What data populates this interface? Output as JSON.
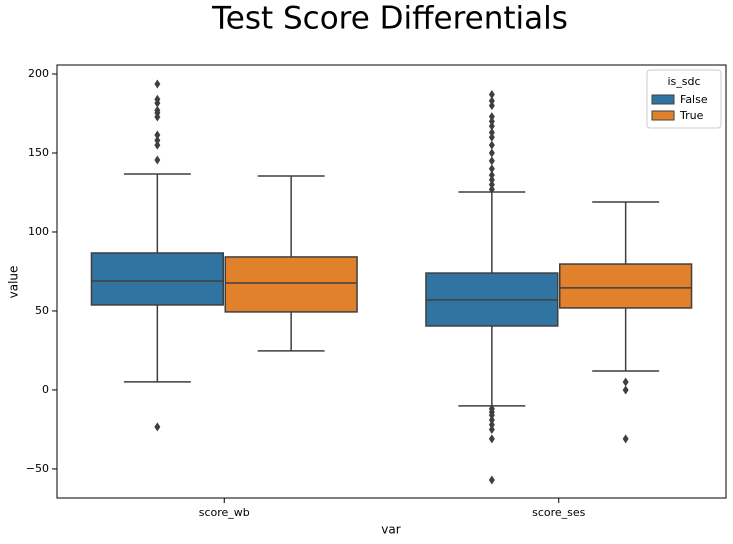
{
  "chart_data": {
    "type": "box",
    "title": "Test Score Differentials",
    "x_label": "var",
    "y_label": "value",
    "categories": [
      "score_wb",
      "score_ses"
    ],
    "ylim": [
      -68.4,
      205.7
    ],
    "yticks": [
      {
        "value": -50,
        "label": "−50"
      },
      0,
      50,
      100,
      150,
      200
    ],
    "legend_title": "is_sdc",
    "legend_loc": "upper right",
    "series": [
      {
        "name": "False",
        "color": "#3274a1",
        "whisker_low": [
          5.1,
          -10.1
        ],
        "q1": [
          53.8,
          40.5
        ],
        "median": [
          69,
          57
        ],
        "q3": [
          86.7,
          74
        ],
        "whisker_high": [
          136.7,
          125.3
        ],
        "outliers": [
          [
            -23.4,
            145.6,
            155,
            158,
            161.4,
            172.8,
            175.3,
            177,
            181.6,
            184,
            193.7
          ],
          [
            -57,
            -31,
            -25,
            -22,
            -19,
            -16,
            -14,
            -12,
            127,
            130,
            133,
            136,
            140,
            145,
            150,
            155,
            160,
            163,
            167,
            170,
            173,
            180,
            183,
            187
          ]
        ]
      },
      {
        "name": "True",
        "color": "#e1812c",
        "whisker_low": [
          24.7,
          12
        ],
        "q1": [
          49.4,
          51.9
        ],
        "median": [
          67.7,
          64.6
        ],
        "q3": [
          84.2,
          79.7
        ],
        "whisker_high": [
          135.4,
          119
        ],
        "outliers": [
          [],
          [
            -31,
            0,
            5
          ]
        ]
      }
    ]
  }
}
